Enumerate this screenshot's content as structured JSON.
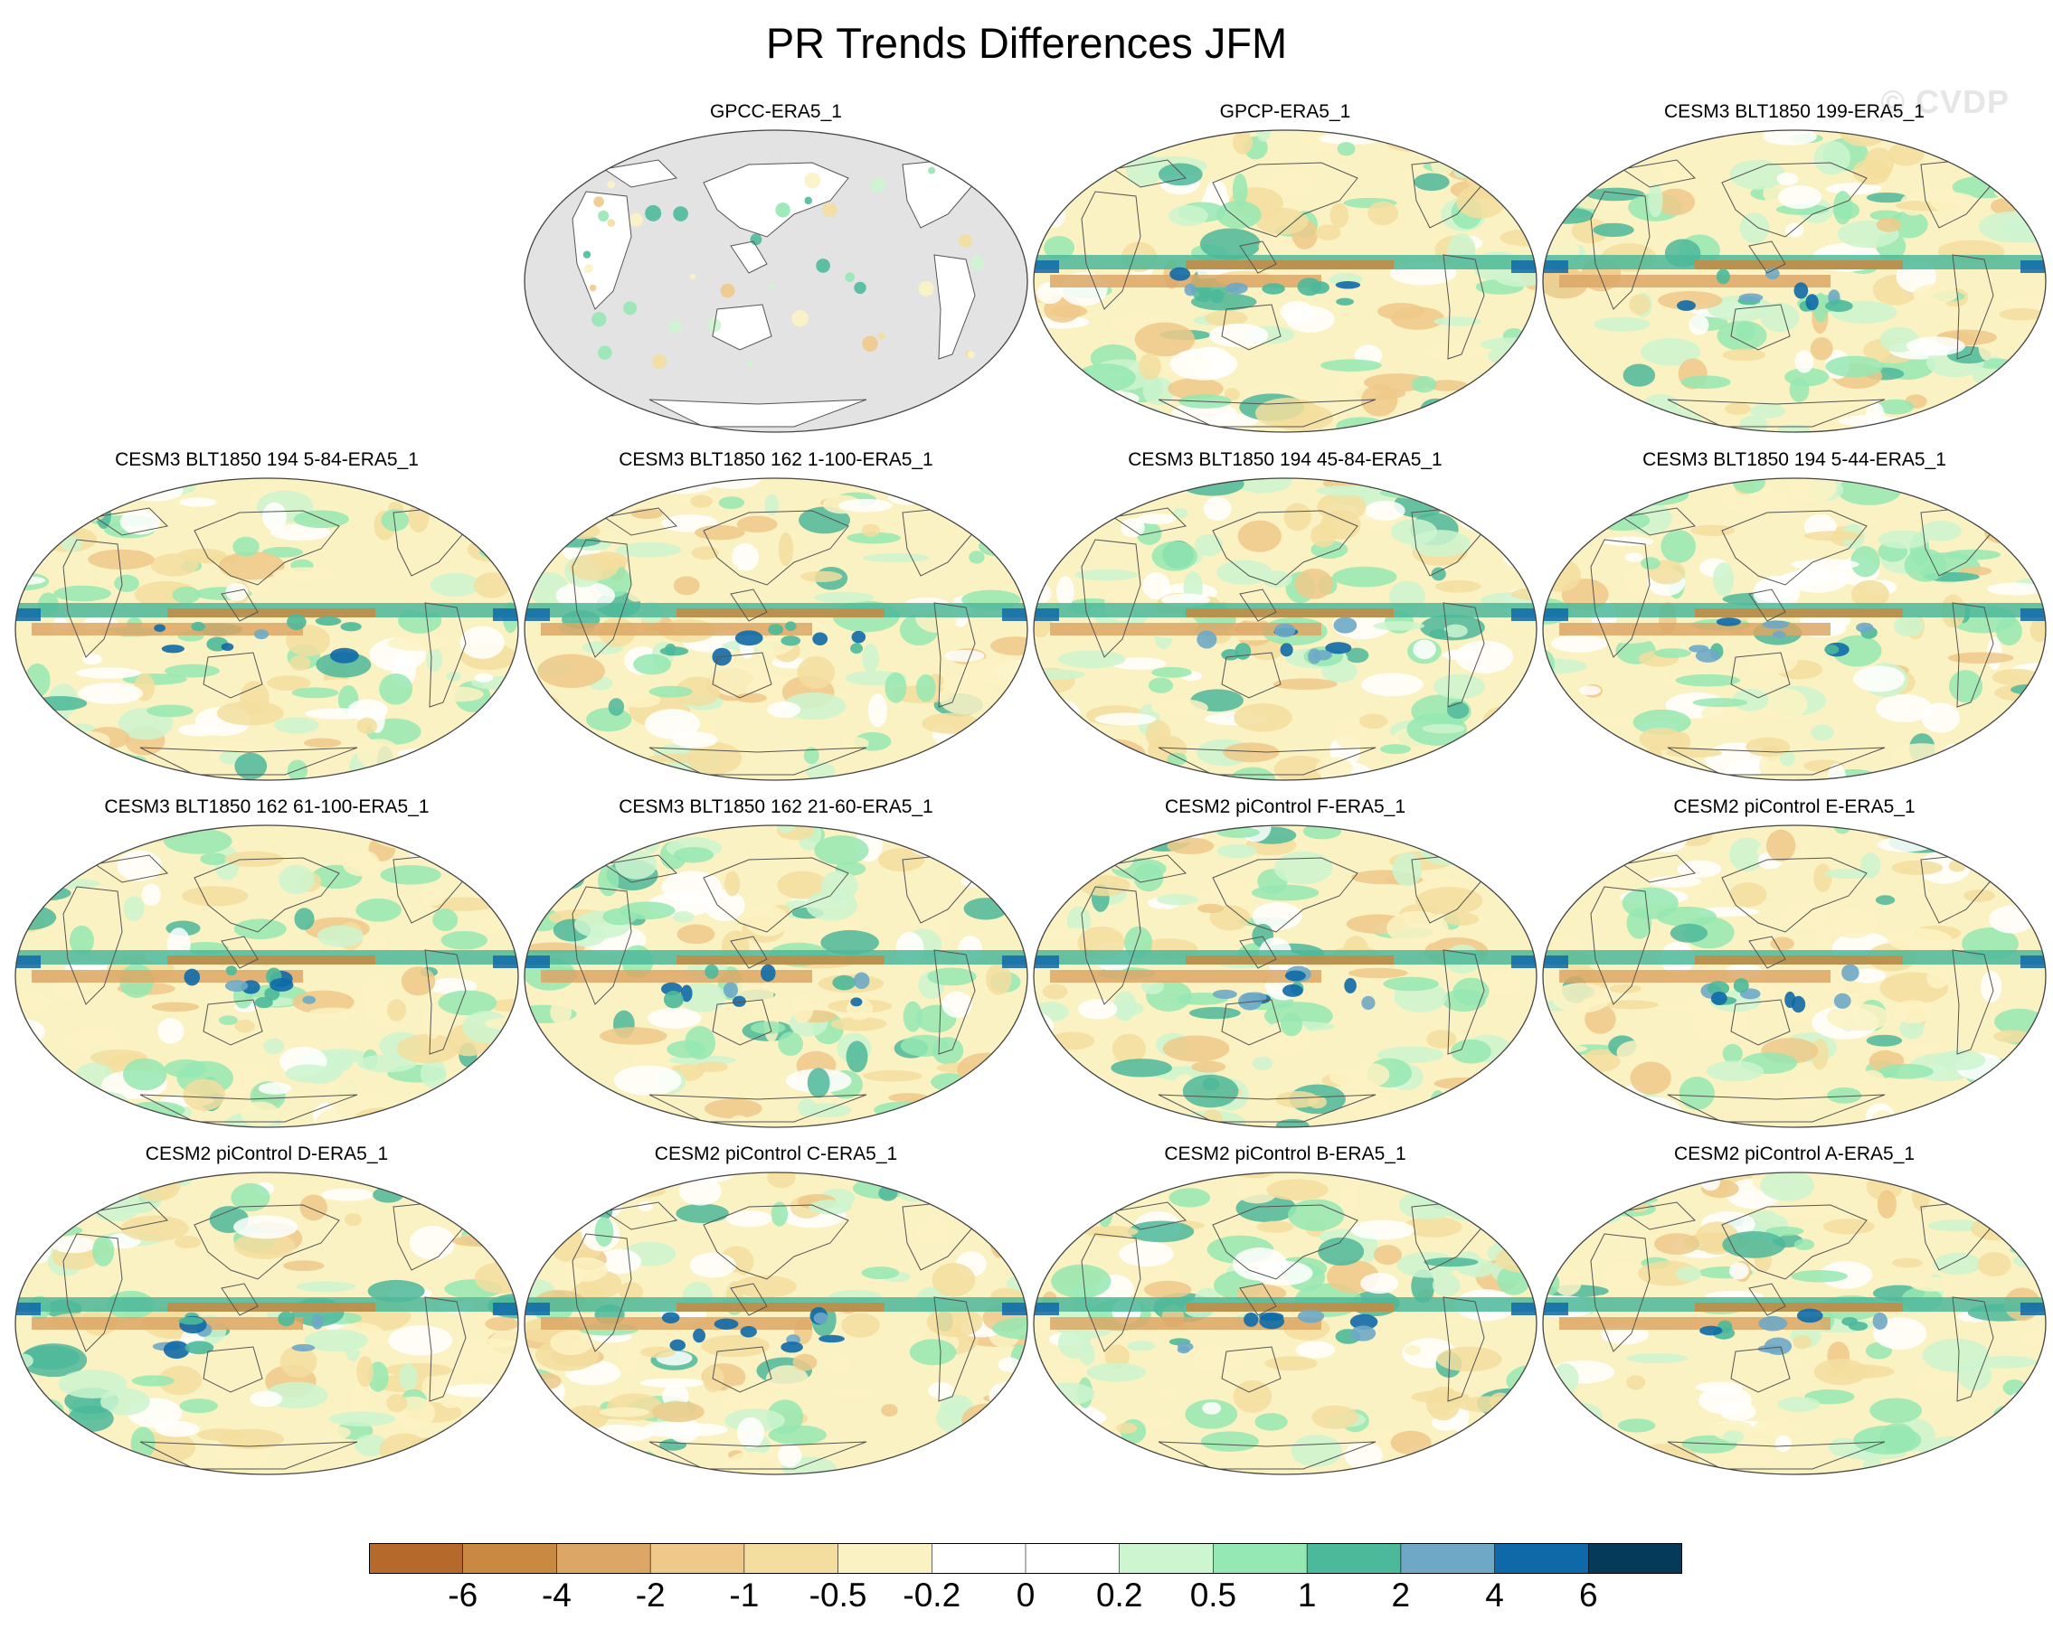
{
  "title": "PR Trends Differences JFM",
  "watermark": "© CVDP",
  "panels": [
    {
      "title": "GPCC-ERA5_1",
      "ocean_masked": true
    },
    {
      "title": "GPCP-ERA5_1"
    },
    {
      "title": "CESM3 BLT1850 199-ERA5_1"
    },
    {
      "title": "CESM3 BLT1850 194 5-84-ERA5_1"
    },
    {
      "title": "CESM3 BLT1850 162 1-100-ERA5_1"
    },
    {
      "title": "CESM3 BLT1850 194 45-84-ERA5_1"
    },
    {
      "title": "CESM3 BLT1850 194 5-44-ERA5_1"
    },
    {
      "title": "CESM3 BLT1850 162 61-100-ERA5_1"
    },
    {
      "title": "CESM3 BLT1850 162 21-60-ERA5_1"
    },
    {
      "title": "CESM2 piControl F-ERA5_1"
    },
    {
      "title": "CESM2 piControl E-ERA5_1"
    },
    {
      "title": "CESM2 piControl D-ERA5_1"
    },
    {
      "title": "CESM2 piControl C-ERA5_1"
    },
    {
      "title": "CESM2 piControl B-ERA5_1"
    },
    {
      "title": "CESM2 piControl A-ERA5_1"
    }
  ],
  "colorbar": {
    "colors": [
      "#b5692a",
      "#c88a42",
      "#dca766",
      "#efc98a",
      "#f3de9f",
      "#fbf2c3",
      "#ffffff",
      "#ffffff",
      "#cdf5cf",
      "#95e7b3",
      "#4cb99a",
      "#6ea8c6",
      "#0f69a8",
      "#053a59"
    ],
    "labels": [
      "-6",
      "-4",
      "-2",
      "-1",
      "-0.5",
      "-0.2",
      "0",
      "0.2",
      "0.5",
      "1",
      "2",
      "4",
      "6"
    ]
  },
  "colors": {
    "land_mask": "#e3e3e3",
    "coastline": "#555555"
  }
}
